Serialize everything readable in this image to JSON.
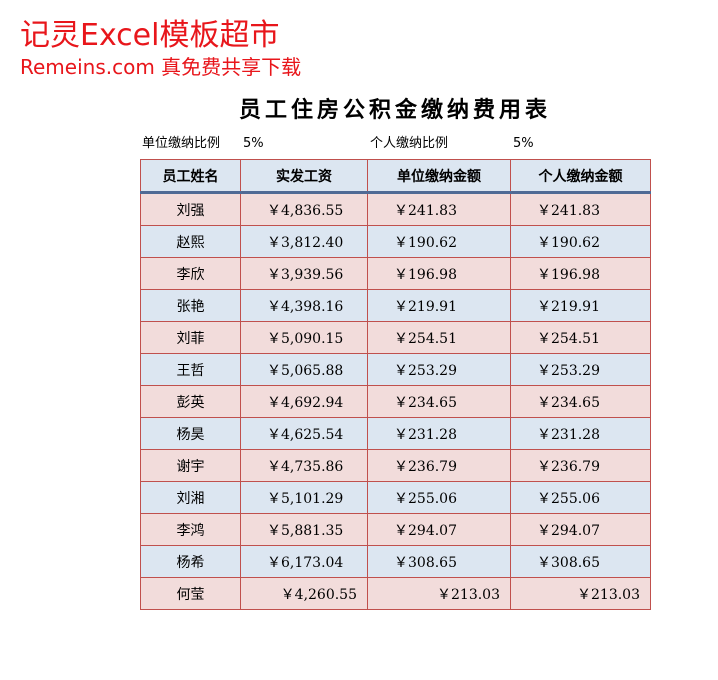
{
  "watermark": {
    "line1": "记灵Excel模板超市",
    "line2": "Remeins.com 真免费共享下载"
  },
  "title": "员工住房公积金缴纳费用表",
  "rates": {
    "company_label": "单位缴纳比例",
    "company_value": "5%",
    "personal_label": "个人缴纳比例",
    "personal_value": "5%"
  },
  "table": {
    "header": [
      "员工姓名",
      "实发工资",
      "单位缴纳金额",
      "个人缴纳金额"
    ],
    "rows": [
      [
        "刘强",
        "￥4,836.55",
        "￥241.83",
        "￥241.83"
      ],
      [
        "赵熙",
        "￥3,812.40",
        "￥190.62",
        "￥190.62"
      ],
      [
        "李欣",
        "￥3,939.56",
        "￥196.98",
        "￥196.98"
      ],
      [
        "张艳",
        "￥4,398.16",
        "￥219.91",
        "￥219.91"
      ],
      [
        "刘菲",
        "￥5,090.15",
        "￥254.51",
        "￥254.51"
      ],
      [
        "王哲",
        "￥5,065.88",
        "￥253.29",
        "￥253.29"
      ],
      [
        "彭英",
        "￥4,692.94",
        "￥234.65",
        "￥234.65"
      ],
      [
        "杨昊",
        "￥4,625.54",
        "￥231.28",
        "￥231.28"
      ],
      [
        "谢宇",
        "￥4,735.86",
        "￥236.79",
        "￥236.79"
      ],
      [
        "刘湘",
        "￥5,101.29",
        "￥255.06",
        "￥255.06"
      ],
      [
        "李鸿",
        "￥5,881.35",
        "￥294.07",
        "￥294.07"
      ],
      [
        "杨希",
        "￥6,173.04",
        "￥308.65",
        "￥308.65"
      ],
      [
        "何莹",
        "￥4,260.55",
        "￥213.03",
        "￥213.03"
      ]
    ]
  }
}
